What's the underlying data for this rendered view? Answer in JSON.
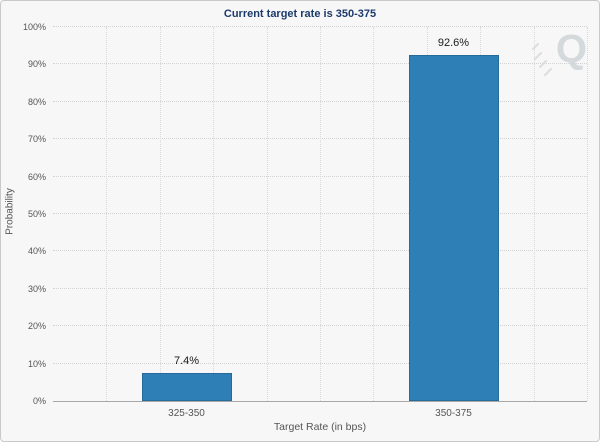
{
  "chart_data": {
    "type": "bar",
    "title": "Current target rate is 350-375",
    "xlabel": "Target Rate (in bps)",
    "ylabel": "Probability",
    "categories": [
      "325-350",
      "350-375"
    ],
    "values": [
      7.4,
      92.6
    ],
    "value_labels": [
      "7.4%",
      "92.6%"
    ],
    "ylim": [
      0,
      100
    ],
    "ytick_step": 10,
    "yticks": [
      "0%",
      "10%",
      "20%",
      "30%",
      "40%",
      "50%",
      "60%",
      "70%",
      "80%",
      "90%",
      "100%"
    ],
    "grid": true,
    "legend_position": "none",
    "bar_color": "#2d7fb5",
    "bar_border_color": "#256a99",
    "title_color": "#1c3a6b",
    "background_color": "#f7f7f7"
  },
  "watermark": {
    "letter": "Q"
  }
}
